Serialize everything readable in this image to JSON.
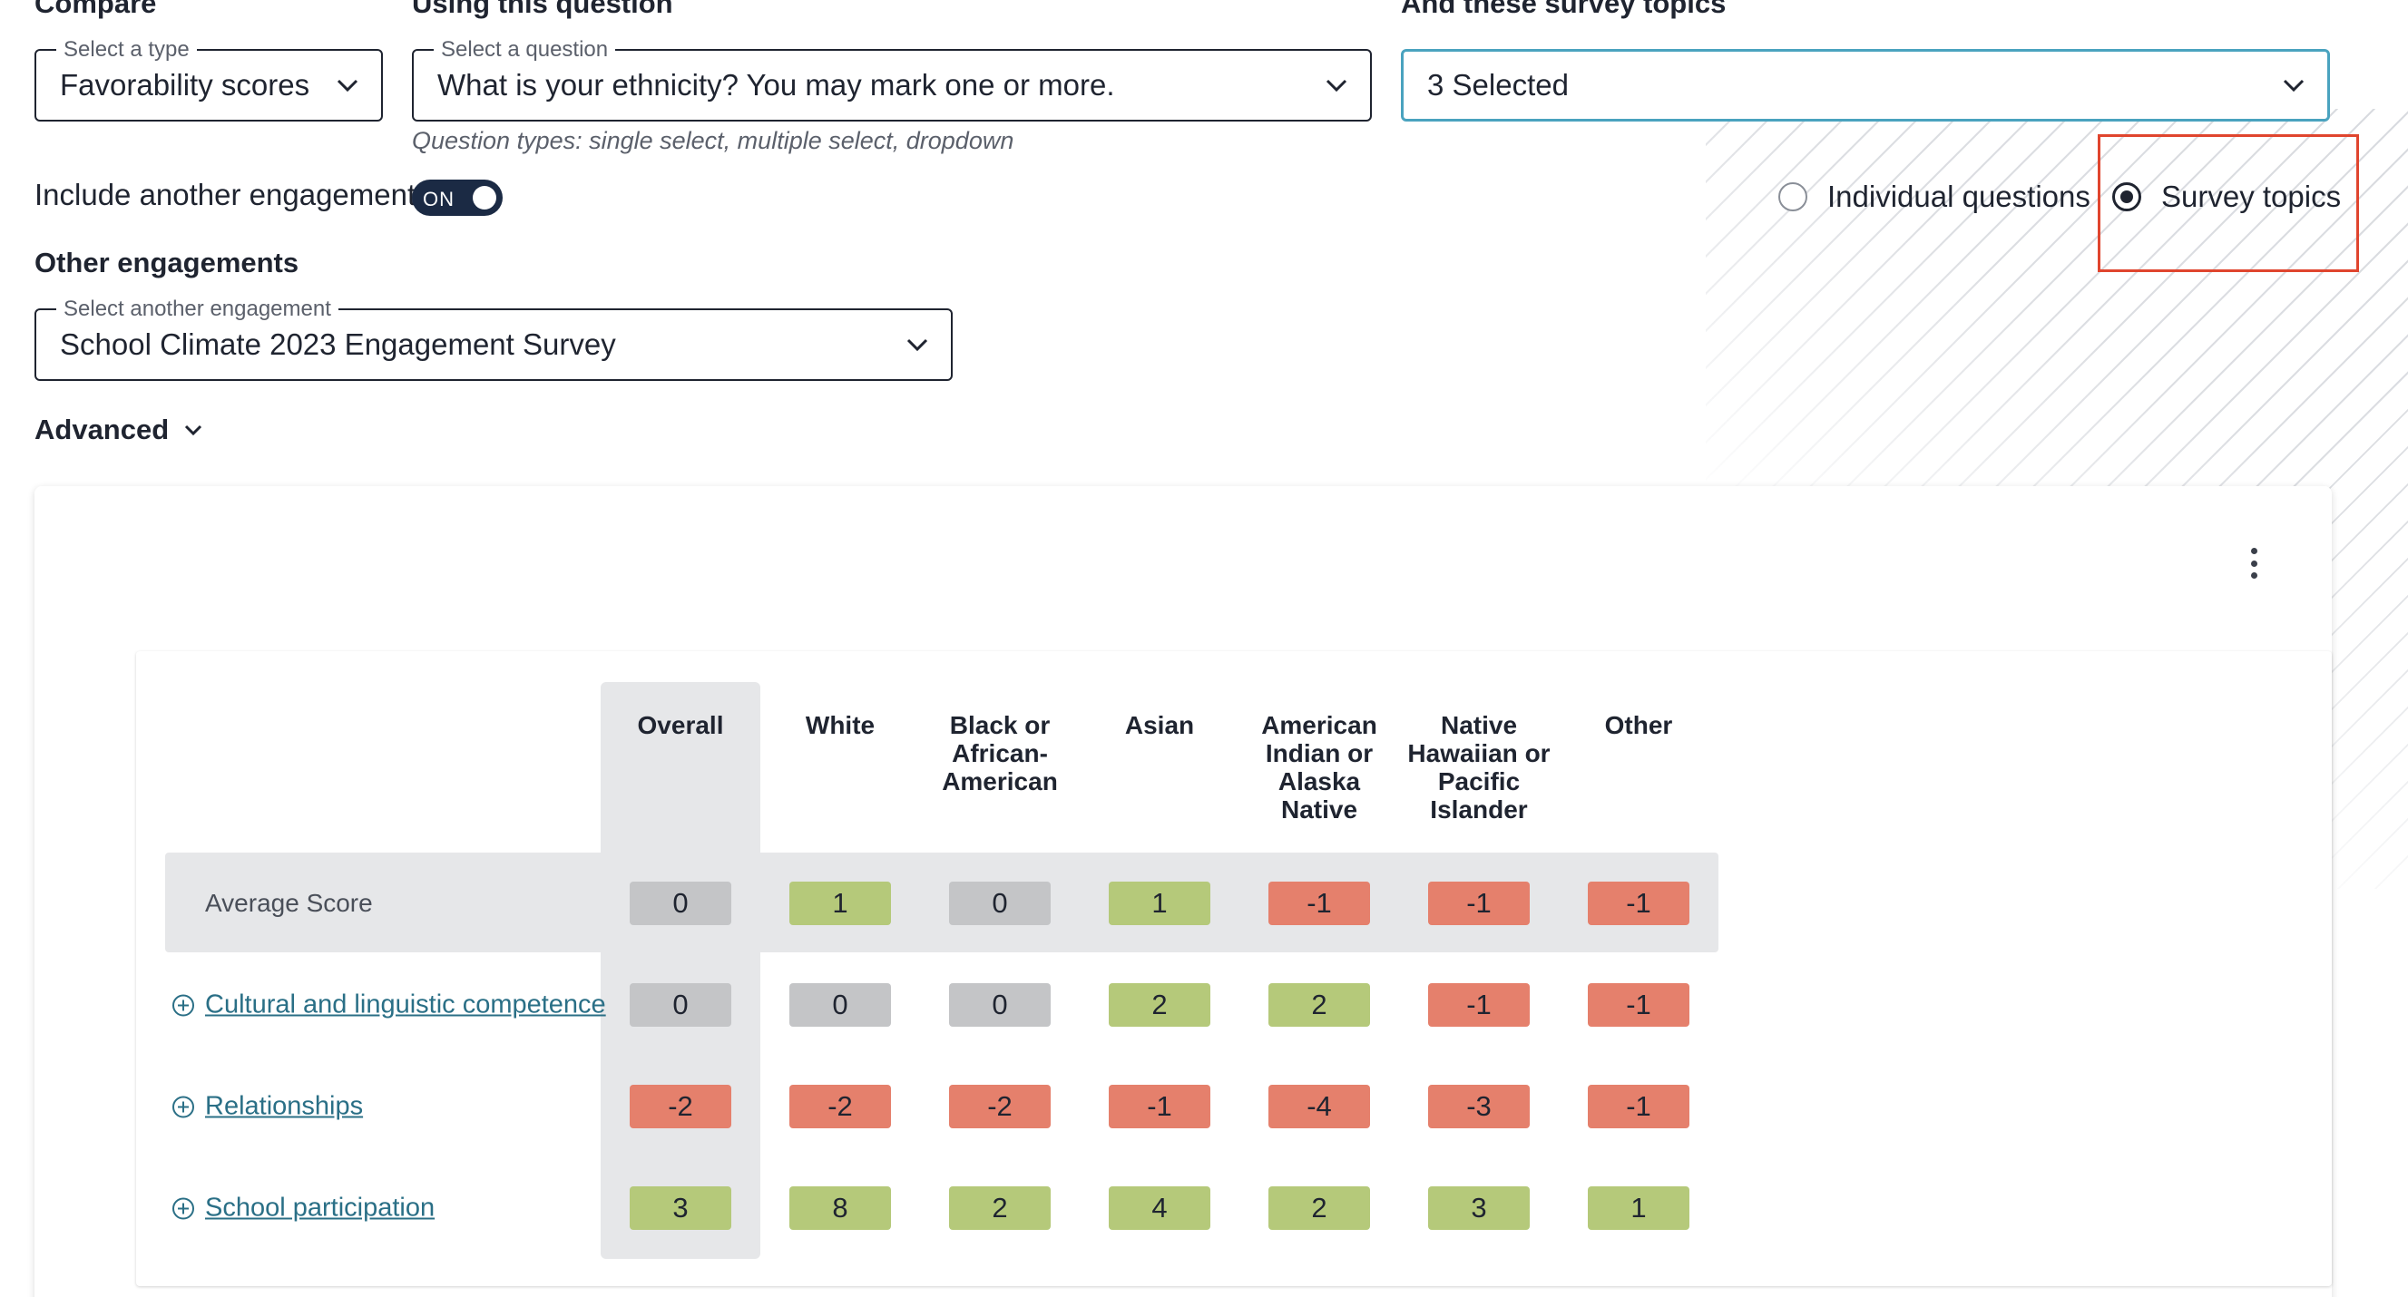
{
  "colors": {
    "accent": "#4aa3bf",
    "positive": "#b5c97a",
    "negative": "#e5806c",
    "neutral": "#c4c5c7",
    "toggle_on": "#1b2a44",
    "highlight": "#e0452e"
  },
  "compare": {
    "title": "Compare",
    "type_legend": "Select a type",
    "type_value": "Favorability scores"
  },
  "question": {
    "title": "Using this question",
    "legend": "Select a question",
    "value": "What is your ethnicity? You may mark one or more.",
    "hint": "Question types: single select, multiple select, dropdown"
  },
  "topics": {
    "title": "And these survey topics",
    "value": "3 Selected"
  },
  "include": {
    "label": "Include another engagement",
    "toggle_text": "ON"
  },
  "view_mode": {
    "options": [
      "Individual questions",
      "Survey topics"
    ],
    "selected": "Survey topics"
  },
  "other": {
    "title": "Other engagements",
    "legend": "Select another engagement",
    "value": "School Climate 2023 Engagement Survey"
  },
  "advanced": {
    "label": "Advanced"
  },
  "table": {
    "columns": [
      "Overall",
      "White",
      "Black or African-American",
      "Asian",
      "American Indian or Alaska Native",
      "Native Hawaiian or Pacific Islander",
      "Other"
    ],
    "rows": [
      {
        "label": "Average Score",
        "values": [
          0,
          1,
          0,
          1,
          -1,
          -1,
          -1
        ]
      },
      {
        "label": "Cultural and linguistic competence",
        "values": [
          0,
          0,
          0,
          2,
          2,
          -1,
          -1
        ]
      },
      {
        "label": "Relationships",
        "values": [
          -2,
          -2,
          -2,
          -1,
          -4,
          -3,
          -1
        ]
      },
      {
        "label": "School participation",
        "values": [
          3,
          8,
          2,
          4,
          2,
          3,
          1
        ]
      }
    ]
  },
  "icons": [
    "chevron-down-icon",
    "kebab-menu-icon",
    "expand-plus-icon"
  ]
}
